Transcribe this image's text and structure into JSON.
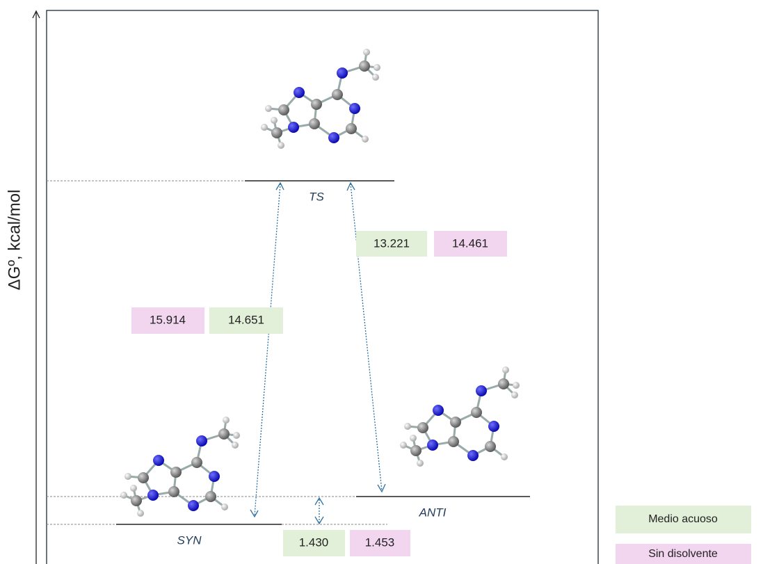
{
  "axis": {
    "label": "ΔGº, kcal/mol"
  },
  "states": [
    {
      "label": "TS"
    },
    {
      "label": "SYN"
    },
    {
      "label": "ANTI"
    }
  ],
  "barriers": {
    "syn_ts": [
      "15.914",
      "14.651"
    ],
    "anti_ts": [
      "13.221",
      "14.461"
    ],
    "syn_anti": [
      "1.430",
      "1.453"
    ]
  },
  "legend": [
    "Medio acuoso",
    "Sin disolvente"
  ]
}
